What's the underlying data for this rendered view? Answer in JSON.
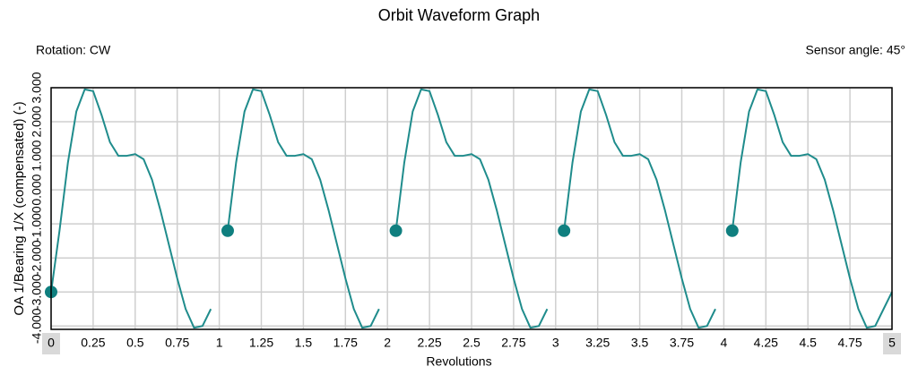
{
  "chart_data": {
    "type": "line",
    "title": "Orbit Waveform Graph",
    "annotations": [
      "Rotation: CW",
      "Sensor angle: 45°"
    ],
    "xlabel": "Revolutions",
    "ylabel": "OA 1/Bearing 1/X (compensated) (-)",
    "x": [
      0,
      0.05,
      0.1,
      0.15,
      0.2,
      0.25,
      0.3,
      0.35,
      0.4,
      0.45,
      0.5,
      0.55,
      0.6,
      0.65,
      0.7,
      0.75,
      0.8,
      0.85,
      0.9,
      0.95,
      1,
      1.05,
      1.1,
      1.15,
      1.2,
      1.25,
      1.3,
      1.35,
      1.4,
      1.45,
      1.5,
      1.55,
      1.6,
      1.65,
      1.7,
      1.75,
      1.8,
      1.85,
      1.9,
      1.95,
      2,
      2.05,
      2.1,
      2.15,
      2.2,
      2.25,
      2.3,
      2.35,
      2.4,
      2.45,
      2.5,
      2.55,
      2.6,
      2.65,
      2.7,
      2.75,
      2.8,
      2.85,
      2.9,
      2.95,
      3,
      3.05,
      3.1,
      3.15,
      3.2,
      3.25,
      3.3,
      3.35,
      3.4,
      3.45,
      3.5,
      3.55,
      3.6,
      3.65,
      3.7,
      3.75,
      3.8,
      3.85,
      3.9,
      3.95,
      4,
      4.05,
      4.1,
      4.15,
      4.2,
      4.25,
      4.3,
      4.35,
      4.4,
      4.45,
      4.5,
      4.55,
      4.6,
      4.65,
      4.7,
      4.75,
      4.8,
      4.85,
      4.9,
      4.95,
      5
    ],
    "series": [
      {
        "color": "#1f8c8c",
        "values": [
          -3,
          -1.2,
          0.8,
          2.3,
          2.95,
          2.9,
          2.2,
          1.4,
          1.0,
          1.0,
          1.05,
          0.9,
          0.3,
          -0.6,
          -1.6,
          -2.6,
          -3.5,
          -4.05,
          -4.0,
          -3.5,
          null,
          -1.2,
          0.8,
          2.3,
          2.95,
          2.9,
          2.2,
          1.4,
          1.0,
          1.0,
          1.05,
          0.9,
          0.3,
          -0.6,
          -1.6,
          -2.6,
          -3.5,
          -4.05,
          -4.0,
          -3.5,
          null,
          -1.2,
          0.8,
          2.3,
          2.95,
          2.9,
          2.2,
          1.4,
          1.0,
          1.0,
          1.05,
          0.9,
          0.3,
          -0.6,
          -1.6,
          -2.6,
          -3.5,
          -4.05,
          -4.0,
          -3.5,
          null,
          -1.2,
          0.8,
          2.3,
          2.95,
          2.9,
          2.2,
          1.4,
          1.0,
          1.0,
          1.05,
          0.9,
          0.3,
          -0.6,
          -1.6,
          -2.6,
          -3.5,
          -4.05,
          -4.0,
          -3.5,
          null,
          -1.2,
          0.8,
          2.3,
          2.95,
          2.9,
          2.2,
          1.4,
          1.0,
          1.0,
          1.05,
          0.9,
          0.3,
          -0.6,
          -1.6,
          -2.6,
          -3.5,
          -4.05,
          -4.0,
          -3.5,
          -3
        ]
      }
    ],
    "markers": {
      "color": "#0f7f7f",
      "x": [
        0,
        1.05,
        2.05,
        3.05,
        4.05
      ],
      "values": [
        -3,
        -1.2,
        -1.2,
        -1.2,
        -1.2
      ]
    },
    "xlim": [
      0,
      5
    ],
    "xticks": [
      0,
      0.25,
      0.5,
      0.75,
      1,
      1.25,
      1.5,
      1.75,
      2,
      2.25,
      2.5,
      2.75,
      3,
      3.25,
      3.5,
      3.75,
      4,
      4.25,
      4.5,
      4.75,
      5
    ],
    "ylim": [
      -4.098,
      3.0
    ],
    "yticks": [
      {
        "value": -4,
        "label": "-4.000"
      },
      {
        "value": -3,
        "label": "-3.000"
      },
      {
        "value": -2,
        "label": "-2.000"
      },
      {
        "value": -1,
        "label": "-1.000"
      },
      {
        "value": 0,
        "label": "0.000"
      },
      {
        "value": 1,
        "label": "1.000"
      },
      {
        "value": 2,
        "label": "2.000"
      },
      {
        "value": 3,
        "label": "3.000"
      }
    ],
    "grid": true
  }
}
